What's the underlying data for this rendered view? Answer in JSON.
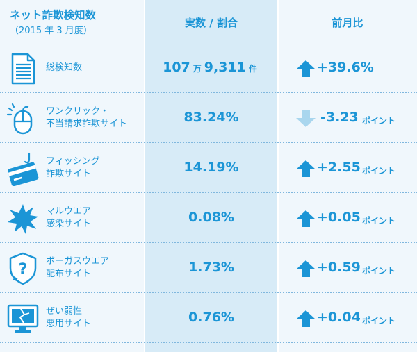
{
  "header": {
    "title": "ネット詐欺検知数",
    "subtitle": "（2015 年 3 月度）",
    "col_value": "実数 / 割合",
    "col_change": "前月比"
  },
  "colors": {
    "accent": "#1b95d6",
    "arrow_up": "#1b95d6",
    "arrow_down": "#a9d6ee",
    "col_light": "#f0f7fc",
    "col_mid": "#d7ebf7"
  },
  "rows": [
    {
      "icon": "document-icon",
      "label": "総検知数",
      "value_num1": "107",
      "value_unit1": "万",
      "value_num2": "9,311",
      "value_unit2": "件",
      "direction": "up",
      "change": "+39.6%",
      "change_unit": ""
    },
    {
      "icon": "mouse-click-icon",
      "label": "ワンクリック・\n不当請求詐欺サイト",
      "value": "83.24%",
      "direction": "down",
      "change": "-3.23",
      "change_unit": "ポイント"
    },
    {
      "icon": "credit-card-hook-icon",
      "label": "フィッシング\n詐欺サイト",
      "value": "14.19%",
      "direction": "up",
      "change": "+2.55",
      "change_unit": "ポイント"
    },
    {
      "icon": "malware-burst-icon",
      "label": "マルウエア\n感染サイト",
      "value": "0.08%",
      "direction": "up",
      "change": "+0.05",
      "change_unit": "ポイント"
    },
    {
      "icon": "question-shield-icon",
      "label": "ボーガスウエア\n配布サイト",
      "value": "1.73%",
      "direction": "up",
      "change": "+0.59",
      "change_unit": "ポイント"
    },
    {
      "icon": "broken-monitor-icon",
      "label": "ぜい弱性\n悪用サイト",
      "value": "0.76%",
      "direction": "up",
      "change": "+0.04",
      "change_unit": "ポイント"
    }
  ]
}
